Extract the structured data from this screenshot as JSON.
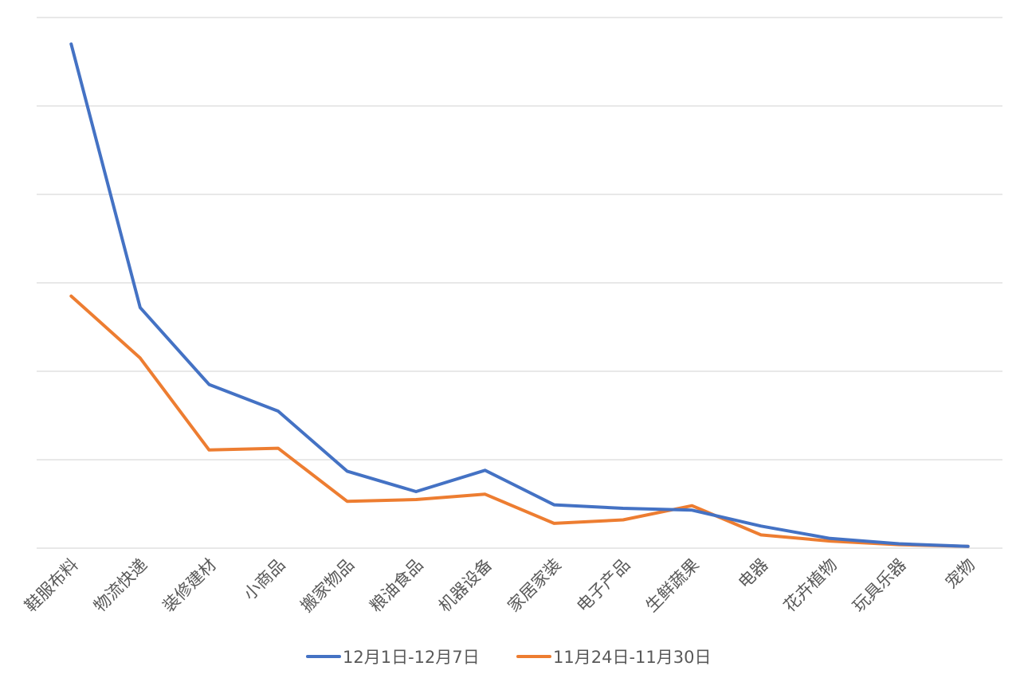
{
  "chart_data": {
    "type": "line",
    "categories": [
      "鞋服布料",
      "物流快递",
      "装修建材",
      "小商品",
      "搬家物品",
      "粮油食品",
      "机器设备",
      "家居家装",
      "电子产品",
      "生鲜蔬果",
      "电器",
      "花卉植物",
      "玩具乐器",
      "宠物"
    ],
    "series": [
      {
        "name": "12月1日-12月7日",
        "color": "#4472c4",
        "values": [
          5.7,
          2.72,
          1.85,
          1.55,
          0.87,
          0.64,
          0.88,
          0.49,
          0.45,
          0.43,
          0.25,
          0.11,
          0.05,
          0.02
        ]
      },
      {
        "name": "11月24日-11月30日",
        "color": "#ed7d31",
        "values": [
          2.85,
          2.15,
          1.11,
          1.13,
          0.53,
          0.55,
          0.61,
          0.28,
          0.32,
          0.48,
          0.15,
          0.08,
          0.04,
          0.02
        ]
      }
    ],
    "ylim": [
      0,
      6
    ],
    "gridlines": 6,
    "y_tick_labels_visible": false,
    "legend_position": "bottom"
  }
}
